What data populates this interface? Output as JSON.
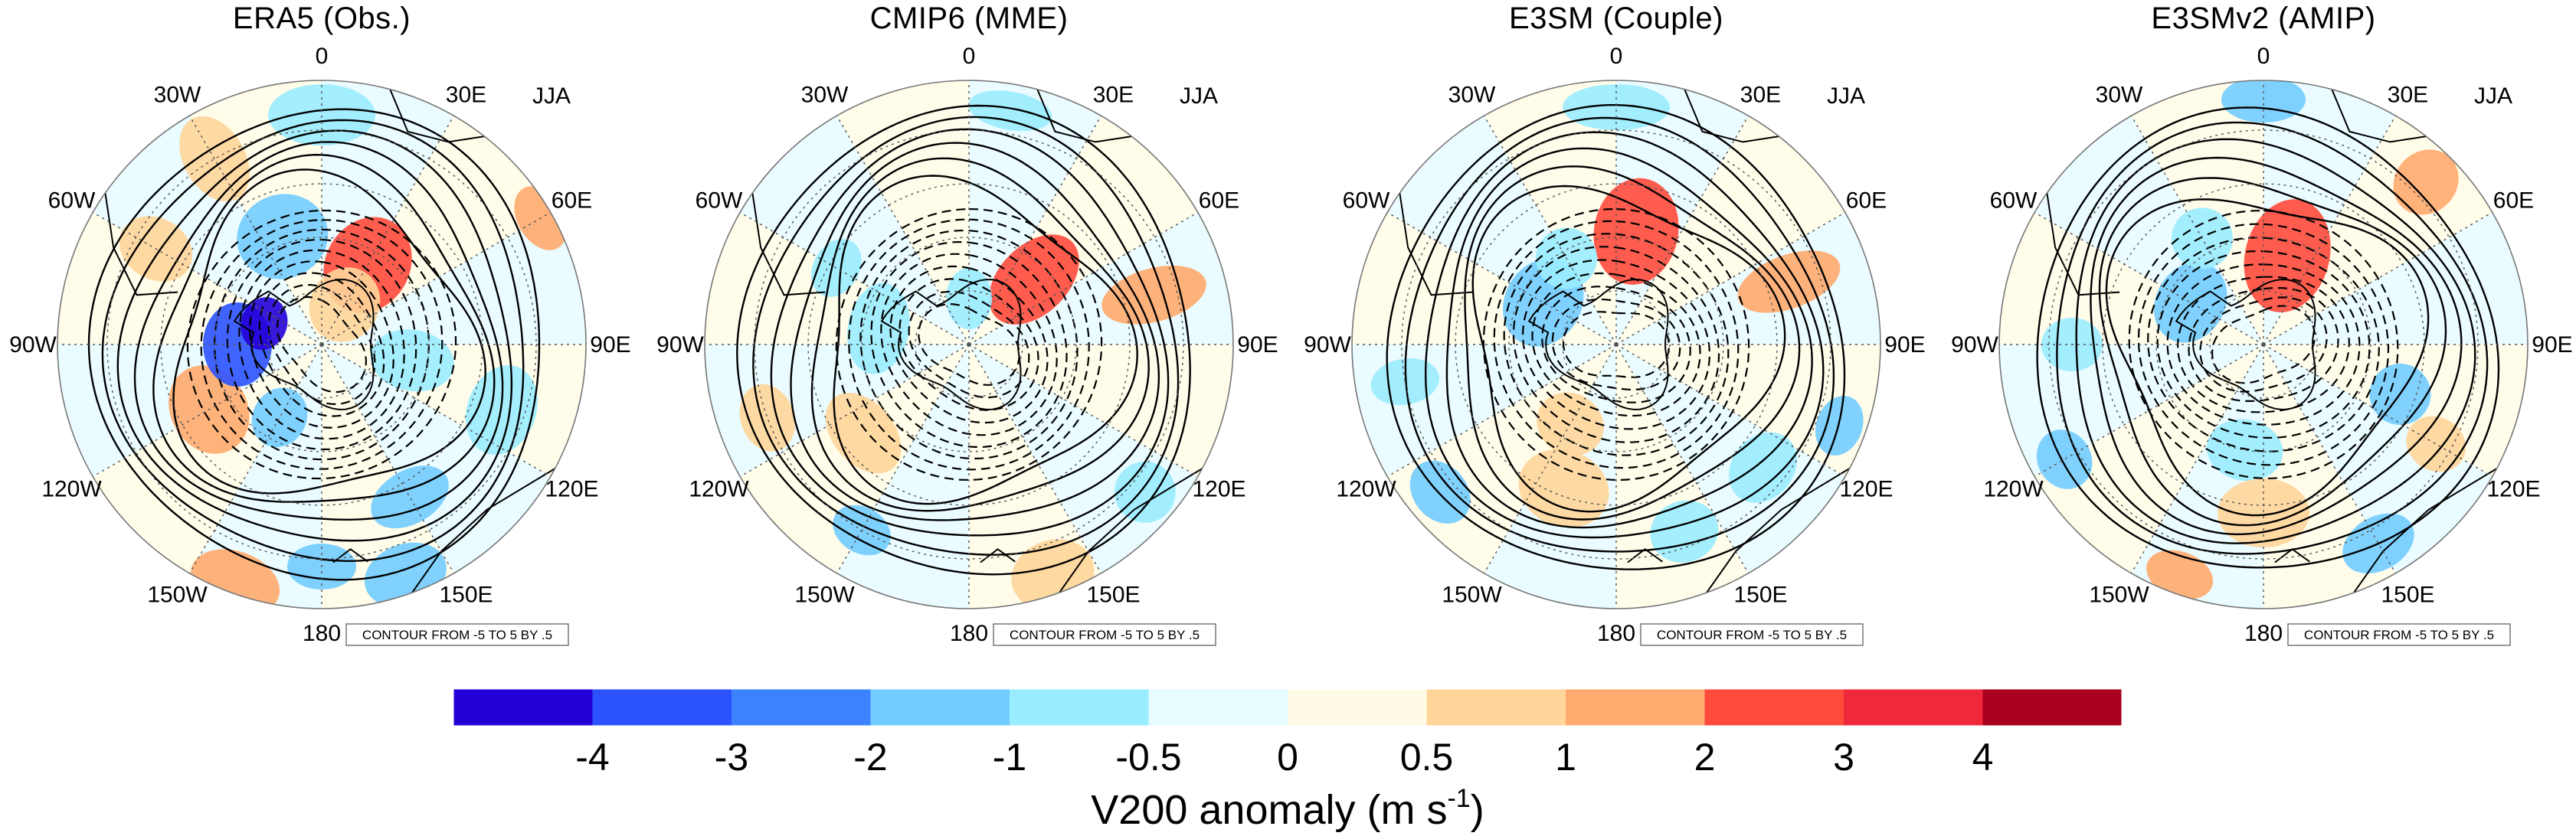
{
  "figure": {
    "season": "JJA",
    "contour_note": "CONTOUR FROM -5 TO 5 BY .5",
    "colorbar_title_main": "V200 anomaly (m s",
    "colorbar_title_sup": "-1",
    "colorbar_title_close": ")"
  },
  "longitude_labels": [
    "0",
    "30E",
    "60E",
    "90E",
    "120E",
    "150E",
    "180",
    "150W",
    "120W",
    "90W",
    "60W",
    "30W"
  ],
  "panels": [
    {
      "title": "ERA5 (Obs.)"
    },
    {
      "title": "CMIP6 (MME)"
    },
    {
      "title": "E3SM (Couple)"
    },
    {
      "title": "E3SMv2 (AMIP)"
    }
  ],
  "colorbar": {
    "tick_labels": [
      "-4",
      "-3",
      "-2",
      "-1",
      "-0.5",
      "0",
      "0.5",
      "1",
      "2",
      "3",
      "4"
    ],
    "colors": [
      "#2400d8",
      "#2c52ff",
      "#3c82ff",
      "#72ccff",
      "#9aecff",
      "#e6fcff",
      "#fffbe6",
      "#ffd59a",
      "#ffaa6e",
      "#ff4a3c",
      "#f0283c",
      "#a8001e"
    ]
  },
  "colors": {
    "land_line": "#000000",
    "grid": "#555555"
  }
}
